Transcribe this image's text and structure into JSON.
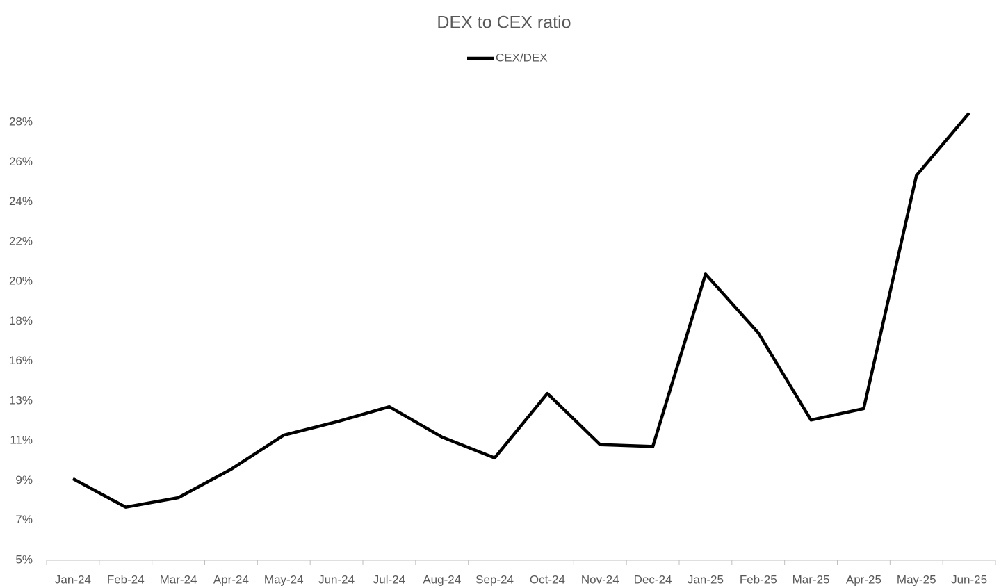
{
  "chart_data": {
    "type": "line",
    "title": "DEX to CEX ratio",
    "categories": [
      "Jan-24",
      "Feb-24",
      "Mar-24",
      "Apr-24",
      "May-24",
      "Jun-24",
      "Jul-24",
      "Aug-24",
      "Sep-24",
      "Oct-24",
      "Nov-24",
      "Dec-24",
      "Jan-25",
      "Feb-25",
      "Mar-25",
      "Apr-25",
      "May-25",
      "Jun-25"
    ],
    "series": [
      {
        "name": "CEX/DEX",
        "color": "#000000",
        "values": [
          9.3,
          7.8,
          8.3,
          9.8,
          11.6,
          12.3,
          13.1,
          11.5,
          10.4,
          13.8,
          11.1,
          11.0,
          20.1,
          17.0,
          12.4,
          13.0,
          25.3,
          28.6
        ]
      }
    ],
    "ylim": [
      5,
      30.2
    ],
    "yticks": [
      {
        "value": 5,
        "label": "5%"
      },
      {
        "value": 7.1,
        "label": "7%"
      },
      {
        "value": 9.2,
        "label": "9%"
      },
      {
        "value": 11.3,
        "label": "11%"
      },
      {
        "value": 13.4,
        "label": "13%"
      },
      {
        "value": 15.5,
        "label": "16%"
      },
      {
        "value": 17.6,
        "label": "18%"
      },
      {
        "value": 19.7,
        "label": "20%"
      },
      {
        "value": 21.8,
        "label": "22%"
      },
      {
        "value": 23.9,
        "label": "24%"
      },
      {
        "value": 26,
        "label": "26%"
      },
      {
        "value": 28.1,
        "label": "28%"
      }
    ],
    "legend": "top"
  }
}
